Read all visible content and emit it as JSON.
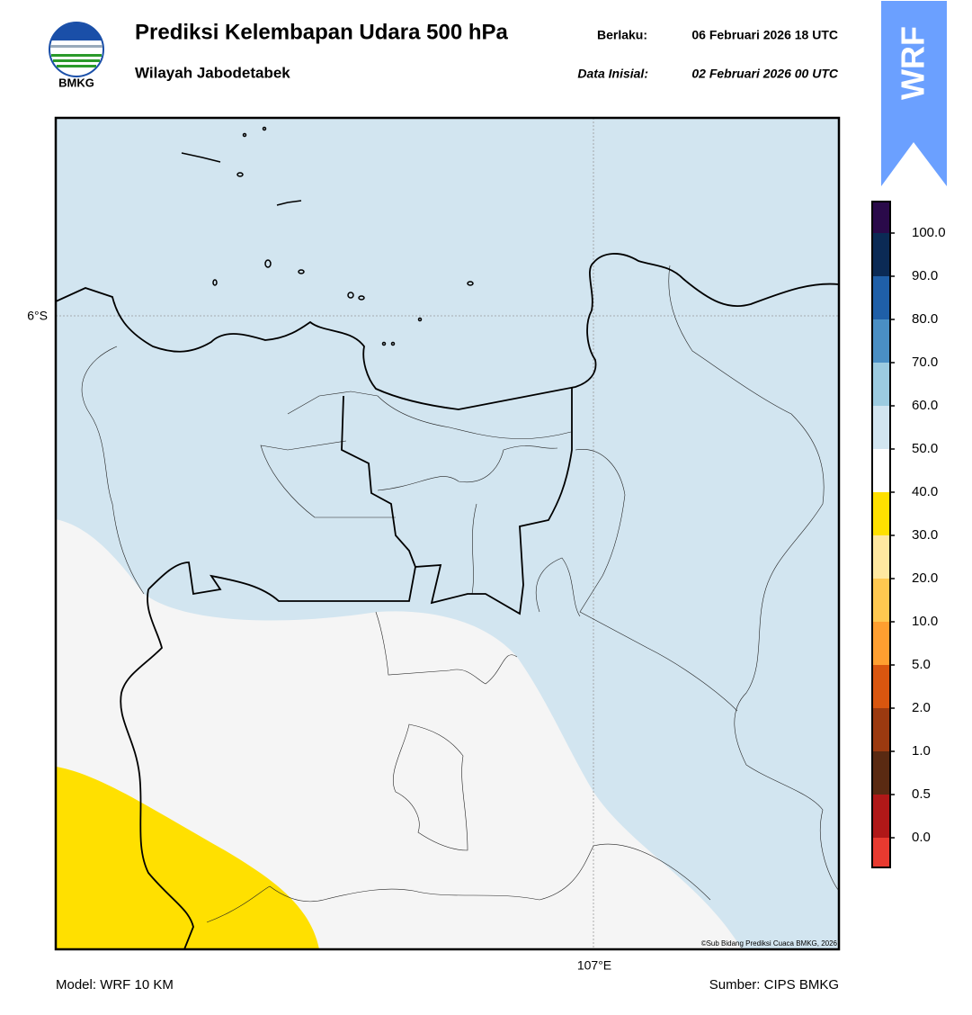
{
  "header": {
    "title": "Prediksi Kelembapan Udara 500 hPa",
    "subtitle": "Wilayah Jabodetabek",
    "valid_label": "Berlaku:",
    "valid_time": "06 Februari 2026 18 UTC",
    "init_label": "Data Inisial:",
    "init_time": "02 Februari 2026 00 UTC",
    "logo_text": "BMKG",
    "badge": "WRF"
  },
  "map": {
    "lat_label": "6°S",
    "lon_label": "107°E",
    "copyright": "©Sub Bidang Prediksi Cuaca BMKG, 2026"
  },
  "colorbar": {
    "labels": [
      "100.0",
      "90.0",
      "80.0",
      "70.0",
      "60.0",
      "50.0",
      "40.0",
      "30.0",
      "20.0",
      "10.0",
      "5.0",
      "2.0",
      "1.0",
      "0.5",
      "0.0"
    ],
    "colors": [
      "#2a0a4a",
      "#0b2a55",
      "#1f5fa8",
      "#4a8fc4",
      "#9ccbe0",
      "#d2e5f0",
      "#ffffff",
      "#ffe000",
      "#ffe8a0",
      "#ffc850",
      "#ff9f30",
      "#d9560f",
      "#9c3a10",
      "#5a2a12",
      "#b01818",
      "#e83a30"
    ]
  },
  "footer": {
    "model": "Model: WRF 10 KM",
    "source": "Sumber: CIPS BMKG"
  }
}
